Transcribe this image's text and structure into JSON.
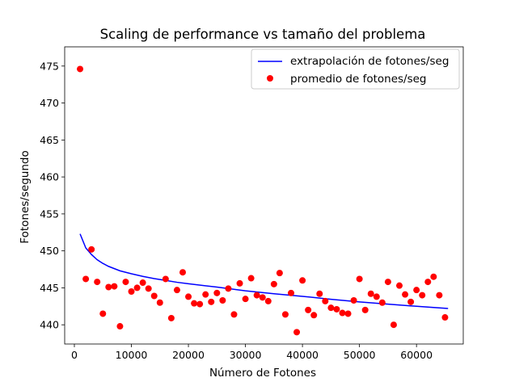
{
  "chart_data": {
    "type": "scatter",
    "title": "Scaling de performance vs tamaño del problema",
    "xlabel": "Número de Fotones",
    "ylabel": "Fotones/segundo",
    "xlim": [
      -1700,
      68200
    ],
    "ylim": [
      437.4,
      477.6
    ],
    "xticks": [
      0,
      10000,
      20000,
      30000,
      40000,
      50000,
      60000
    ],
    "yticks": [
      440,
      445,
      450,
      455,
      460,
      465,
      470,
      475
    ],
    "legend_position": "top-right",
    "colors": {
      "line": "#0000ff",
      "points": "#ff0000"
    },
    "series": [
      {
        "name": "extrapolación de fotones/seg",
        "kind": "line",
        "x": [
          1000,
          2000,
          3000,
          4000,
          5000,
          6000,
          7000,
          8000,
          10000,
          12000,
          14000,
          16000,
          18000,
          20000,
          25000,
          30000,
          35000,
          40000,
          45000,
          50000,
          55000,
          60000,
          65536
        ],
        "y": [
          452.3,
          450.4,
          449.5,
          448.8,
          448.3,
          447.9,
          447.6,
          447.3,
          446.9,
          446.55,
          446.25,
          446.0,
          445.75,
          445.55,
          445.1,
          444.6,
          444.2,
          443.85,
          443.45,
          443.1,
          442.8,
          442.5,
          442.2
        ]
      },
      {
        "name": "promedio de fotones/seg",
        "kind": "scatter",
        "x": [
          1000,
          2000,
          3000,
          4000,
          5000,
          6000,
          7000,
          8000,
          9000,
          10000,
          11000,
          12000,
          13000,
          14000,
          15000,
          16000,
          17000,
          18000,
          19000,
          20000,
          21000,
          22000,
          23000,
          24000,
          25000,
          26000,
          27000,
          28000,
          29000,
          30000,
          31000,
          32000,
          33000,
          34000,
          35000,
          36000,
          37000,
          38000,
          39000,
          40000,
          41000,
          42000,
          43000,
          44000,
          45000,
          46000,
          47000,
          48000,
          49000,
          50000,
          51000,
          52000,
          53000,
          54000,
          55000,
          56000,
          57000,
          58000,
          59000,
          60000,
          61000,
          62000,
          63000,
          64000,
          65000
        ],
        "y": [
          474.6,
          446.2,
          450.2,
          445.8,
          441.5,
          445.1,
          445.2,
          439.8,
          445.8,
          444.5,
          445.0,
          445.7,
          444.9,
          443.9,
          443.0,
          446.2,
          440.9,
          444.7,
          447.1,
          443.8,
          442.9,
          442.8,
          444.1,
          443.1,
          444.3,
          443.3,
          444.9,
          441.4,
          445.6,
          443.5,
          446.3,
          444.0,
          443.7,
          443.2,
          445.5,
          447.0,
          441.4,
          444.3,
          439.0,
          446.0,
          442.0,
          441.3,
          444.2,
          443.2,
          442.3,
          442.1,
          441.6,
          441.5,
          443.3,
          446.2,
          442.0,
          444.2,
          443.8,
          443.0,
          445.8,
          440.0,
          445.3,
          444.1,
          443.1,
          444.7,
          444.0,
          445.8,
          446.5,
          444.0,
          441.0
        ]
      }
    ]
  }
}
